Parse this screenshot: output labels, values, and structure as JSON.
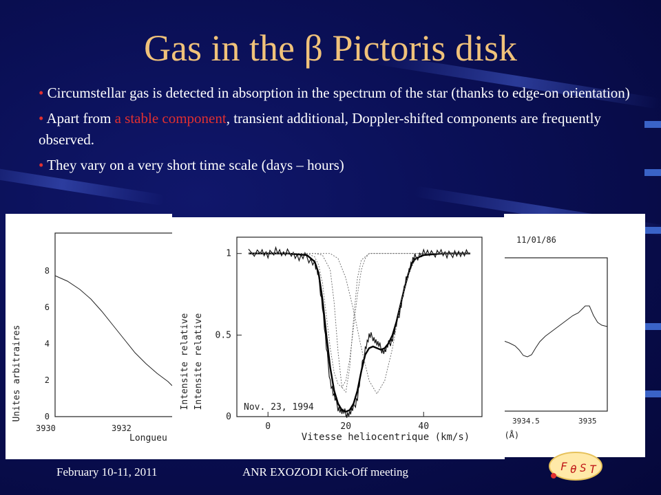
{
  "slide": {
    "title": "Gas in the β Pictoris disk",
    "bullets": [
      {
        "text": "Circumstellar gas is detected in absorption in the spectrum of the star (thanks to edge-on orientation)"
      },
      {
        "pre": "Apart from ",
        "highlight": "a stable component",
        "post": ", transient additional, Doppler-shifted components are frequently observed."
      },
      {
        "text": "They vary on a very short time scale (days – hours)"
      }
    ],
    "footer": {
      "date": "February 10-11, 2011",
      "meeting": "ANR EXOZODI Kick-Off meeting"
    },
    "colors": {
      "title": "#f0c27a",
      "highlight": "#e03030",
      "background": "#0a0f55"
    },
    "logo_icon": "fost-logo-icon"
  },
  "left_plot": {
    "ylabel": "Unites arbitraires",
    "xlabel_partial": "Longueu",
    "yticks": [
      "0",
      "2",
      "4",
      "6",
      "8"
    ],
    "xticks": [
      "3930",
      "3932"
    ]
  },
  "right_plot": {
    "date_label": "11/01/86",
    "xticks": [
      "3934.5",
      "3935"
    ],
    "xlabel_partial": "H (Å)"
  },
  "chart_data": {
    "type": "line",
    "title": "",
    "annotation": "Nov. 23, 1994",
    "xlabel": "Vitesse heliocentrique (km/s)",
    "ylabel": "Intensite relative",
    "ylabel_duplicate": "Intensite relative",
    "xlim": [
      -8,
      55
    ],
    "ylim": [
      0,
      1.1
    ],
    "xticks": [
      "0",
      "20",
      "40"
    ],
    "yticks": [
      "0",
      "0.5",
      "1"
    ],
    "series": [
      {
        "style": "noisy-data",
        "x": [
          -5,
          -2,
          0,
          2,
          4,
          6,
          8,
          10,
          12,
          13,
          14,
          15,
          16,
          17,
          18,
          19,
          20,
          21,
          22,
          23,
          24,
          25,
          26,
          27,
          28,
          29,
          30,
          31,
          32,
          33,
          34,
          35,
          36,
          37,
          38,
          40,
          42,
          44,
          46,
          48,
          50,
          52
        ],
        "y": [
          1.0,
          1.02,
          0.98,
          1.03,
          0.99,
          1.01,
          0.97,
          0.98,
          0.94,
          0.86,
          0.68,
          0.42,
          0.22,
          0.12,
          0.06,
          0.03,
          0.02,
          0.02,
          0.05,
          0.12,
          0.28,
          0.42,
          0.49,
          0.49,
          0.45,
          0.42,
          0.4,
          0.44,
          0.48,
          0.56,
          0.66,
          0.78,
          0.88,
          0.95,
          0.98,
          1.01,
          0.99,
          1.02,
          0.98,
          1.01,
          0.99,
          1.0
        ]
      },
      {
        "style": "fit",
        "x": [
          -5,
          0,
          5,
          10,
          12,
          13,
          14,
          15,
          16,
          17,
          18,
          19,
          20,
          21,
          22,
          23,
          24,
          25,
          26,
          27,
          28,
          29,
          30,
          31,
          32,
          33,
          34,
          35,
          36,
          37,
          38,
          40,
          45,
          52
        ],
        "y": [
          1.0,
          1.0,
          1.0,
          0.99,
          0.95,
          0.88,
          0.72,
          0.5,
          0.3,
          0.16,
          0.08,
          0.04,
          0.03,
          0.04,
          0.08,
          0.16,
          0.28,
          0.38,
          0.42,
          0.43,
          0.42,
          0.41,
          0.42,
          0.45,
          0.5,
          0.58,
          0.68,
          0.78,
          0.87,
          0.94,
          0.97,
          0.99,
          1.0,
          1.0
        ]
      },
      {
        "style": "component-1",
        "x": [
          -5,
          10,
          12,
          13,
          14,
          15,
          16,
          17,
          18,
          19,
          20,
          21,
          22,
          23,
          24,
          25,
          26,
          28,
          35,
          52
        ],
        "y": [
          1.0,
          1.0,
          0.98,
          0.93,
          0.82,
          0.62,
          0.42,
          0.27,
          0.2,
          0.18,
          0.22,
          0.35,
          0.55,
          0.75,
          0.9,
          0.97,
          1.0,
          1.0,
          1.0,
          1.0
        ]
      },
      {
        "style": "component-2",
        "x": [
          -5,
          12,
          14,
          16,
          17,
          18,
          19,
          20,
          21,
          22,
          23,
          24,
          26,
          52
        ],
        "y": [
          1.0,
          1.0,
          0.99,
          0.9,
          0.7,
          0.4,
          0.18,
          0.15,
          0.3,
          0.6,
          0.85,
          0.96,
          1.0,
          1.0
        ]
      },
      {
        "style": "component-3",
        "x": [
          -5,
          16,
          18,
          20,
          22,
          24,
          26,
          28,
          30,
          32,
          34,
          36,
          38,
          40,
          52
        ],
        "y": [
          1.0,
          1.0,
          0.97,
          0.85,
          0.65,
          0.42,
          0.22,
          0.14,
          0.22,
          0.42,
          0.68,
          0.87,
          0.97,
          1.0,
          1.0
        ]
      }
    ]
  }
}
